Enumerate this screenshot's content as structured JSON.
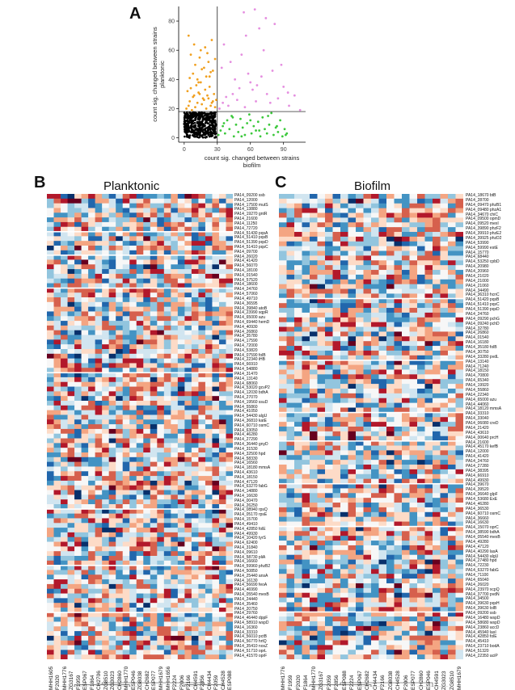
{
  "panel_a": {
    "letter": "A",
    "chart_data": {
      "type": "scatter",
      "xlabel_line1": "count sig. changed between strains",
      "xlabel_line2": "biofilm",
      "ylabel_line1": "count sig. changed between strains",
      "ylabel_line2": "planktonic",
      "xlim": [
        -5,
        110
      ],
      "ylim": [
        -3,
        90
      ],
      "xticks": [
        "0",
        "30",
        "60",
        "90"
      ],
      "xtick_values": [
        0,
        30,
        60,
        90
      ],
      "yticks": [
        "0",
        "20",
        "40",
        "60",
        "80"
      ],
      "ytick_values": [
        0,
        20,
        40,
        60,
        80
      ],
      "threshold_x": 30,
      "threshold_y": 18,
      "colors": {
        "both": "#e58fe0",
        "planktonic": "#f0a020",
        "biofilm": "#3cc83c",
        "neither": "#000000"
      },
      "series": [
        {
          "group": "planktonic",
          "x": [
            2,
            4,
            5,
            7,
            8,
            10,
            12,
            14,
            16,
            18,
            20,
            22,
            24,
            26,
            28,
            3,
            6,
            9,
            11,
            13,
            15,
            17,
            19,
            21,
            23,
            25,
            27,
            29,
            5,
            8,
            12,
            16,
            20,
            24,
            10,
            14,
            18,
            22,
            26,
            6,
            15,
            21,
            28,
            9,
            19,
            25,
            4,
            13,
            23
          ],
          "y": [
            20,
            22,
            25,
            19,
            28,
            21,
            24,
            30,
            23,
            26,
            20,
            27,
            22,
            25,
            21,
            32,
            34,
            29,
            36,
            31,
            38,
            27,
            33,
            29,
            35,
            24,
            30,
            26,
            41,
            44,
            40,
            47,
            42,
            45,
            50,
            55,
            48,
            52,
            46,
            57,
            60,
            58,
            54,
            64,
            62,
            67,
            70,
            38,
            42
          ]
        },
        {
          "group": "both",
          "x": [
            32,
            35,
            38,
            40,
            44,
            48,
            50,
            55,
            60,
            65,
            70,
            75,
            80,
            85,
            90,
            95,
            100,
            105,
            34,
            42,
            52,
            58,
            66,
            72,
            36,
            46,
            56,
            62,
            78,
            88,
            94,
            68,
            74,
            82,
            54,
            64
          ],
          "y": [
            20,
            24,
            28,
            22,
            30,
            26,
            34,
            21,
            38,
            25,
            42,
            30,
            46,
            27,
            35,
            22,
            29,
            19,
            48,
            52,
            57,
            44,
            36,
            60,
            64,
            40,
            70,
            33,
            24,
            50,
            31,
            75,
            82,
            78,
            86,
            88
          ]
        },
        {
          "group": "biofilm",
          "x": [
            31,
            33,
            35,
            37,
            39,
            41,
            43,
            45,
            47,
            49,
            51,
            53,
            55,
            57,
            59,
            61,
            63,
            65,
            67,
            69,
            71,
            73,
            75,
            77,
            79,
            81,
            83,
            85,
            87,
            89,
            91,
            93,
            36,
            44,
            52,
            60,
            68,
            76,
            84,
            92
          ],
          "y": [
            2,
            5,
            8,
            3,
            12,
            6,
            15,
            1,
            9,
            4,
            13,
            7,
            2,
            10,
            16,
            3,
            8,
            5,
            11,
            1,
            14,
            6,
            3,
            9,
            17,
            2,
            7,
            4,
            12,
            1,
            6,
            3,
            10,
            14,
            1,
            12,
            5,
            15,
            8,
            2
          ]
        }
      ]
    }
  },
  "panel_b": {
    "letter": "B",
    "title": "Planktonic",
    "genes": [
      "PA14_09200 ssb",
      "PA14_12000",
      "PA14_17500 mutS",
      "PA14_13880",
      "PA14_19270 gntR",
      "PA14_21600",
      "PA14_11250",
      "PA14_72720",
      "PA14_51430 pqsA",
      "PA14_51410 pqsB",
      "PA14_51390 pqsD",
      "PA14_51410 pqsC",
      "PA14_09700",
      "PA14_26020",
      "PA14_41420",
      "PA14_56070",
      "PA14_18100",
      "PA14_01540",
      "PA14_57520",
      "PA14_18600",
      "PA14_24760",
      "PA14_57060",
      "PA14_49710",
      "PA14_36595",
      "PA14_39840 atoB",
      "PA14_23990 sqpR",
      "PA14_65000 azu",
      "PA14_69440 hemD",
      "PA14_40930",
      "PA14_26860",
      "PA14_35780",
      "PA14_17590",
      "PA14_72000",
      "PA14_53820",
      "PA14_07590 folB",
      "PA14_22340 iHB",
      "PA14_66910",
      "PA14_54880",
      "PA14_31470",
      "PA14_13140",
      "PA14_68060",
      "PA14_53020 gcvP2",
      "PA14_12030 bdhA",
      "PA14_27070",
      "PA14_19560 ssuD",
      "PA14_55860",
      "PA14_41050",
      "PA14_54430 algU",
      "PA14_36810 katE",
      "PA14_60710 osmC",
      "PA14_63050",
      "PA14_46280",
      "PA14_27290",
      "PA14_36440 gnyD",
      "PA14_31530",
      "PA14_32500 hpd",
      "PA14_58330",
      "PA14_16560",
      "PA14_18180 mmsA",
      "PA14_43610",
      "PA14_18150",
      "PA14_47120",
      "PA14_63270 fabG",
      "PA14_14880",
      "PA14_16630",
      "PA14_00470",
      "PA14_26250",
      "PA14_08940 rpsQ",
      "PA14_05170 rpsE",
      "PA14_15700",
      "PA14_49410",
      "PA14_42850 folE",
      "PA14_49930",
      "PA14_10420 tyrS",
      "PA14_62400",
      "PA14_31840",
      "PA14_09610",
      "PA14_58730 pliA",
      "PA14_16660",
      "PA14_59960 phzB2",
      "PA14_50850",
      "PA14_25440 ansA",
      "PA14_16130",
      "PA14_56690 feoA",
      "PA14_46990",
      "PA14_05540 mexB",
      "PA14_24440",
      "PA14_35460",
      "PA14_20750",
      "PA14_29760",
      "PA14_46440 dppF",
      "PA14_58910 wspD",
      "PA14_16360",
      "PA14_33310",
      "PA14_56010 pctB",
      "PA14_56770 hrtQ",
      "PA14_35410 nosZ",
      "PA14_51710 oprL",
      "PA14_41570 oprF"
    ],
    "strains": [
      "MHH1605",
      "F2020",
      "MHH1776",
      "ZG3167",
      "F1959",
      "ESP067",
      "F1864",
      "CH2706",
      "ZG8510",
      "ZG3023",
      "CH2860",
      "MHH1770",
      "ESP046",
      "ZG8038",
      "CH2682",
      "ESP077",
      "MHH1679",
      "MHH1656",
      "F2224",
      "F2006",
      "F2166",
      "CH4591",
      "F2856",
      "CH4434",
      "F2059",
      "CH4528",
      "ESP088"
    ]
  },
  "panel_c": {
    "letter": "C",
    "title": "Biofilm",
    "genes": [
      "PA14_18670 btB",
      "PA14_28700",
      "PA14_09470 phzB1",
      "PA14_09480 phzA1",
      "PA14_34670 chiC",
      "PA14_09500 opmD",
      "PA14_09520 mexI",
      "PA14_39890 phzF2",
      "PA14_39910 phzE2",
      "PA14_39925 phzD2",
      "PA14_53990",
      "PA14_59990 estE",
      "PA14_15770",
      "PA14_68440",
      "PA14_53250 cpbD",
      "PA14_20980",
      "PA14_20960",
      "PA14_21020",
      "PA14_21000",
      "PA14_21060",
      "PA14_34490",
      "PA14_36310 hcnC",
      "PA14_51420 pqsB",
      "PA14_51410 pqsC",
      "PA14_51390 pqsD",
      "PA14_24760",
      "PA14_09290 pchG",
      "PA14_09240 pchD",
      "PA14_32780",
      "PA14_26860",
      "PA14_01540",
      "PA14_16180",
      "PA14_35180 folB",
      "PA14_30750",
      "PA14_33280 pvdL",
      "PA14_13140",
      "PA14_71240",
      "PA14_18150",
      "PA14_70800",
      "PA14_65340",
      "PA14_19920",
      "PA14_55860",
      "PA14_22340",
      "PA14_65000 azu",
      "PA14_44060",
      "PA14_18120 mmsA",
      "PA14_33310",
      "PA14_33040",
      "PA14_06080 creD",
      "PA14_21420",
      "PA14_43610",
      "PA14_00640 prcH",
      "PA14_21600",
      "PA14_45170 kefB",
      "PA14_12000",
      "PA14_41420",
      "PA14_24760",
      "PA14_27280",
      "PA14_38395",
      "PA14_66910",
      "PA14_49930",
      "PA14_39670",
      "PA14_39520",
      "PA14_36640 glpF",
      "PA14_53680 ExE",
      "PA14_46280",
      "PA14_36530",
      "PA14_60710 osmC",
      "PA14_36660",
      "PA14_16630",
      "PA14_15070 oprC",
      "PA14_38590 bdhA",
      "PA14_05540 mexB",
      "PA14_49280",
      "PA14_47120",
      "PA14_40290 lasA",
      "PA14_54430 algU",
      "PA14_27480 hpd",
      "PA14_72230",
      "PA14_63270 fabG",
      "PA14_71100",
      "PA14_65040",
      "PA14_26020",
      "PA14_23970 xcpQ",
      "PA14_37700 pvdN",
      "PA14_34500",
      "PA14_39630 pqsH",
      "PA14_39630 lolB",
      "PA14_09200 ssb",
      "PA14_16480 wspD",
      "PA14_58680 wspD",
      "PA14_23860 accD",
      "PA14_45940 lasI",
      "PA14_42850 folE",
      "PA14_45410",
      "PA14_23710 bodA",
      "PA14_51320",
      "PA14_22350 aciP"
    ],
    "strains": [
      "MHH1776",
      "F1959",
      "F2020",
      "F1864",
      "MHH1770",
      "ZG3167",
      "F2059",
      "F2856",
      "ESP088",
      "F2224",
      "ESP067",
      "CH2682",
      "CH4434",
      "F2166",
      "ZG8038",
      "CH4528",
      "F2006",
      "ESP077",
      "CH2860",
      "ESP046",
      "CH4591",
      "ZG3023",
      "ZG8510",
      "MHH1679"
    ]
  }
}
